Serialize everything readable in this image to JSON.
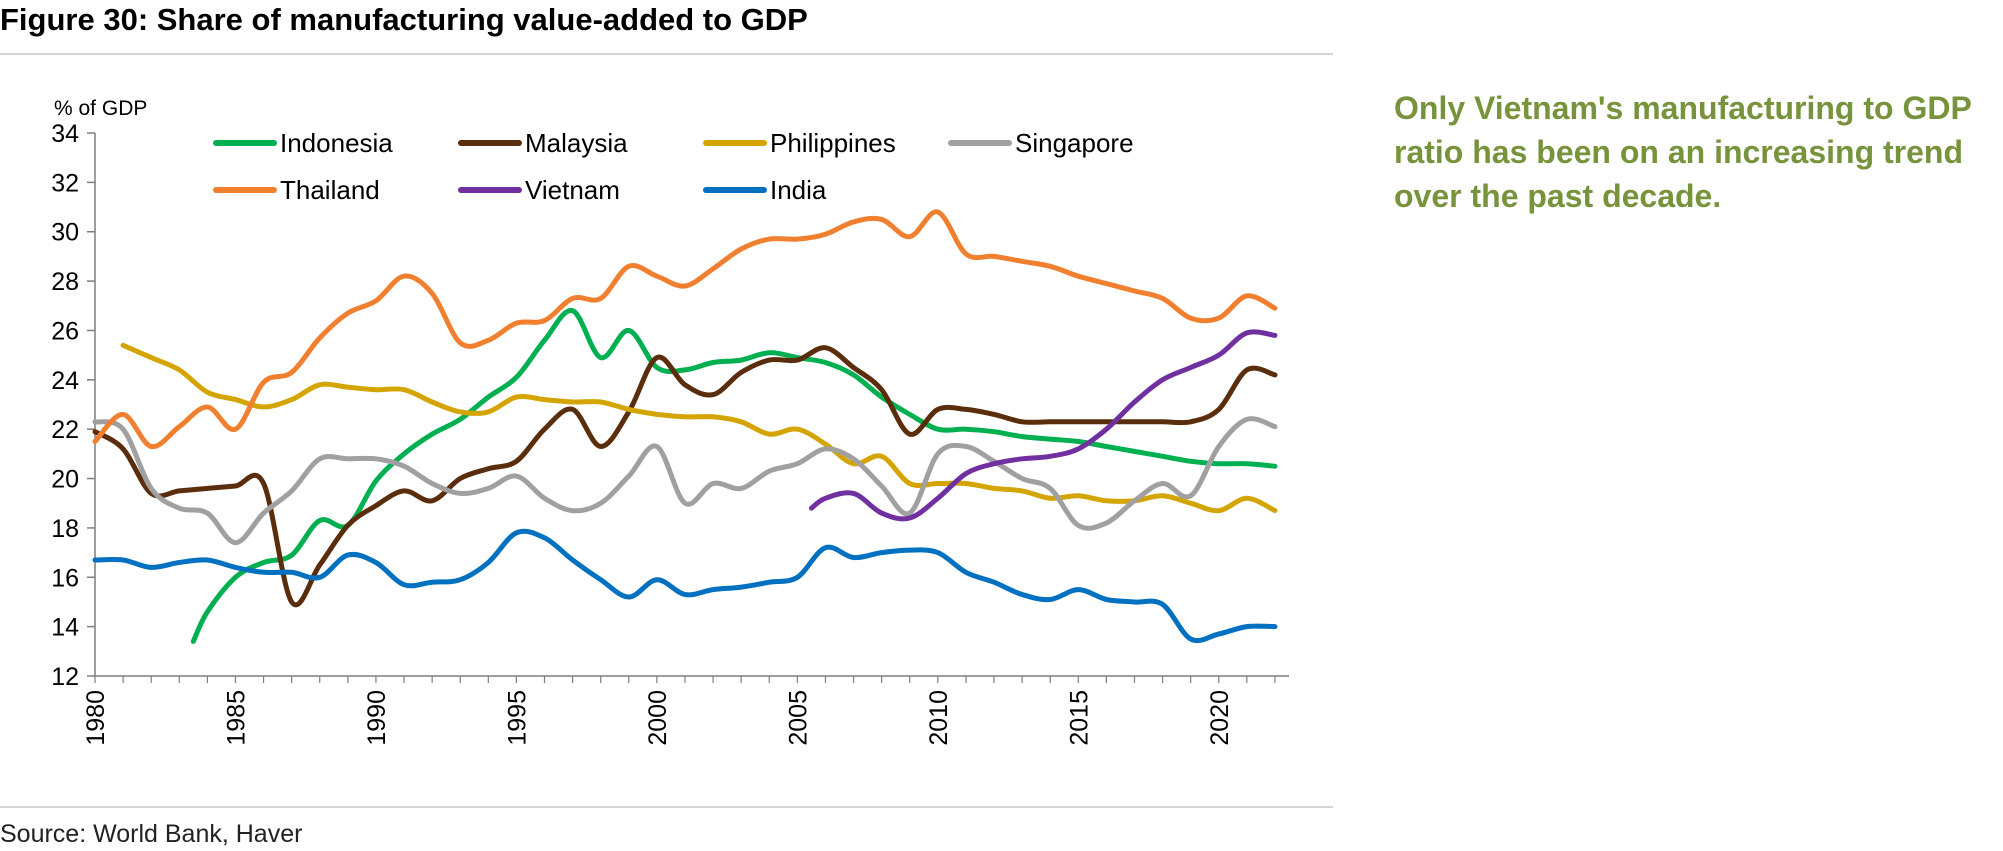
{
  "figure": {
    "title": "Figure 30: Share of manufacturing value-added to GDP",
    "source": "Source: World Bank, Haver",
    "side_note": "Only Vietnam's manufacturing to GDP ratio has been on an increasing trend over the past decade.",
    "accent_color": "#77933c"
  },
  "chart_data": {
    "type": "line",
    "ylabel": "% of GDP",
    "xlabel": "",
    "ylim": [
      12,
      34
    ],
    "xlim": [
      1980,
      2022.5
    ],
    "yticks": [
      12,
      14,
      16,
      18,
      20,
      22,
      24,
      26,
      28,
      30,
      32,
      34
    ],
    "xticks": [
      1980,
      1985,
      1990,
      1995,
      2000,
      2005,
      2010,
      2015,
      2020
    ],
    "grid": false,
    "legend_position": "top",
    "series": [
      {
        "name": "Indonesia",
        "color": "#00b050",
        "x": [
          1983.5,
          1984,
          1985,
          1986,
          1987,
          1988,
          1989,
          1990,
          1991,
          1992,
          1993,
          1994,
          1995,
          1996,
          1997,
          1998,
          1999,
          2000,
          2001,
          2002,
          2003,
          2004,
          2005,
          2006,
          2007,
          2008,
          2009,
          2010,
          2011,
          2012,
          2013,
          2014,
          2015,
          2016,
          2017,
          2018,
          2019,
          2020,
          2021,
          2022
        ],
        "y": [
          13.4,
          14.6,
          16.0,
          16.6,
          16.9,
          18.3,
          18.1,
          19.9,
          21.0,
          21.8,
          22.4,
          23.3,
          24.1,
          25.6,
          26.8,
          24.9,
          26.0,
          24.5,
          24.4,
          24.7,
          24.8,
          25.1,
          24.9,
          24.7,
          24.2,
          23.3,
          22.6,
          22.0,
          22.0,
          21.9,
          21.7,
          21.6,
          21.5,
          21.3,
          21.1,
          20.9,
          20.7,
          20.6,
          20.6,
          20.5
        ]
      },
      {
        "name": "Malaysia",
        "color": "#5a2d0c",
        "x": [
          1980,
          1981,
          1982,
          1983,
          1984,
          1985,
          1986,
          1987,
          1988,
          1989,
          1990,
          1991,
          1992,
          1993,
          1994,
          1995,
          1996,
          1997,
          1998,
          1999,
          2000,
          2001,
          2002,
          2003,
          2004,
          2005,
          2006,
          2007,
          2008,
          2009,
          2010,
          2011,
          2012,
          2013,
          2014,
          2015,
          2016,
          2017,
          2018,
          2019,
          2020,
          2021,
          2022
        ],
        "y": [
          21.9,
          21.2,
          19.4,
          19.5,
          19.6,
          19.7,
          19.8,
          15.0,
          16.5,
          18.1,
          18.9,
          19.5,
          19.1,
          20.0,
          20.4,
          20.7,
          22.0,
          22.8,
          21.3,
          22.7,
          24.9,
          23.8,
          23.4,
          24.3,
          24.8,
          24.8,
          25.3,
          24.5,
          23.6,
          21.8,
          22.8,
          22.8,
          22.6,
          22.3,
          22.3,
          22.3,
          22.3,
          22.3,
          22.3,
          22.3,
          22.8,
          24.4,
          24.2
        ]
      },
      {
        "name": "Philippines",
        "color": "#d4a500",
        "x": [
          1981,
          1982,
          1983,
          1984,
          1985,
          1986,
          1987,
          1988,
          1989,
          1990,
          1991,
          1992,
          1993,
          1994,
          1995,
          1996,
          1997,
          1998,
          1999,
          2000,
          2001,
          2002,
          2003,
          2004,
          2005,
          2006,
          2007,
          2008,
          2009,
          2010,
          2011,
          2012,
          2013,
          2014,
          2015,
          2016,
          2017,
          2018,
          2019,
          2020,
          2021,
          2022
        ],
        "y": [
          25.4,
          24.9,
          24.4,
          23.5,
          23.2,
          22.9,
          23.2,
          23.8,
          23.7,
          23.6,
          23.6,
          23.1,
          22.7,
          22.7,
          23.3,
          23.2,
          23.1,
          23.1,
          22.8,
          22.6,
          22.5,
          22.5,
          22.3,
          21.8,
          22.0,
          21.4,
          20.6,
          20.9,
          19.8,
          19.8,
          19.8,
          19.6,
          19.5,
          19.2,
          19.3,
          19.1,
          19.1,
          19.3,
          19.0,
          18.7,
          19.2,
          18.7
        ]
      },
      {
        "name": "Singapore",
        "color": "#a0a0a0",
        "x": [
          1980,
          1981,
          1982,
          1983,
          1984,
          1985,
          1986,
          1987,
          1988,
          1989,
          1990,
          1991,
          1992,
          1993,
          1994,
          1995,
          1996,
          1997,
          1998,
          1999,
          2000,
          2001,
          2002,
          2003,
          2004,
          2005,
          2006,
          2007,
          2008,
          2009,
          2010,
          2011,
          2012,
          2013,
          2014,
          2015,
          2016,
          2017,
          2018,
          2019,
          2020,
          2021,
          2022
        ],
        "y": [
          22.3,
          22.0,
          19.6,
          18.8,
          18.6,
          17.4,
          18.6,
          19.5,
          20.8,
          20.8,
          20.8,
          20.5,
          19.8,
          19.4,
          19.6,
          20.1,
          19.2,
          18.7,
          19.0,
          20.1,
          21.3,
          19.0,
          19.8,
          19.6,
          20.3,
          20.6,
          21.2,
          20.8,
          19.7,
          18.6,
          21.0,
          21.3,
          20.7,
          20.0,
          19.6,
          18.1,
          18.2,
          19.1,
          19.8,
          19.3,
          21.3,
          22.4,
          22.1
        ]
      },
      {
        "name": "Thailand",
        "color": "#f08030",
        "x": [
          1980,
          1981,
          1982,
          1983,
          1984,
          1985,
          1986,
          1987,
          1988,
          1989,
          1990,
          1991,
          1992,
          1993,
          1994,
          1995,
          1996,
          1997,
          1998,
          1999,
          2000,
          2001,
          2002,
          2003,
          2004,
          2005,
          2006,
          2007,
          2008,
          2009,
          2010,
          2011,
          2012,
          2013,
          2014,
          2015,
          2016,
          2017,
          2018,
          2019,
          2020,
          2021,
          2022
        ],
        "y": [
          21.5,
          22.6,
          21.3,
          22.1,
          22.9,
          22.0,
          23.9,
          24.3,
          25.7,
          26.7,
          27.2,
          28.2,
          27.5,
          25.5,
          25.6,
          26.3,
          26.4,
          27.3,
          27.3,
          28.6,
          28.2,
          27.8,
          28.5,
          29.3,
          29.7,
          29.7,
          29.9,
          30.4,
          30.5,
          29.8,
          30.8,
          29.1,
          29.0,
          28.8,
          28.6,
          28.2,
          27.9,
          27.6,
          27.3,
          26.5,
          26.5,
          27.4,
          26.9
        ]
      },
      {
        "name": "Vietnam",
        "color": "#7030a0",
        "x": [
          2005.5,
          2006,
          2007,
          2008,
          2009,
          2010,
          2011,
          2012,
          2013,
          2014,
          2015,
          2016,
          2017,
          2018,
          2019,
          2020,
          2021,
          2022
        ],
        "y": [
          18.8,
          19.2,
          19.4,
          18.6,
          18.4,
          19.2,
          20.2,
          20.6,
          20.8,
          20.9,
          21.2,
          22.0,
          23.1,
          24.0,
          24.5,
          25.0,
          25.9,
          25.8
        ]
      },
      {
        "name": "India",
        "color": "#0070c0",
        "x": [
          1980,
          1981,
          1982,
          1983,
          1984,
          1985,
          1986,
          1987,
          1988,
          1989,
          1990,
          1991,
          1992,
          1993,
          1994,
          1995,
          1996,
          1997,
          1998,
          1999,
          2000,
          2001,
          2002,
          2003,
          2004,
          2005,
          2006,
          2007,
          2008,
          2009,
          2010,
          2011,
          2012,
          2013,
          2014,
          2015,
          2016,
          2017,
          2018,
          2019,
          2020,
          2021,
          2022
        ],
        "y": [
          16.7,
          16.7,
          16.4,
          16.6,
          16.7,
          16.4,
          16.2,
          16.2,
          16.0,
          16.9,
          16.6,
          15.7,
          15.8,
          15.9,
          16.6,
          17.8,
          17.6,
          16.7,
          15.9,
          15.2,
          15.9,
          15.3,
          15.5,
          15.6,
          15.8,
          16.0,
          17.2,
          16.8,
          17.0,
          17.1,
          17.0,
          16.2,
          15.8,
          15.3,
          15.1,
          15.5,
          15.1,
          15.0,
          14.9,
          13.5,
          13.7,
          14.0,
          14.0
        ]
      }
    ]
  }
}
